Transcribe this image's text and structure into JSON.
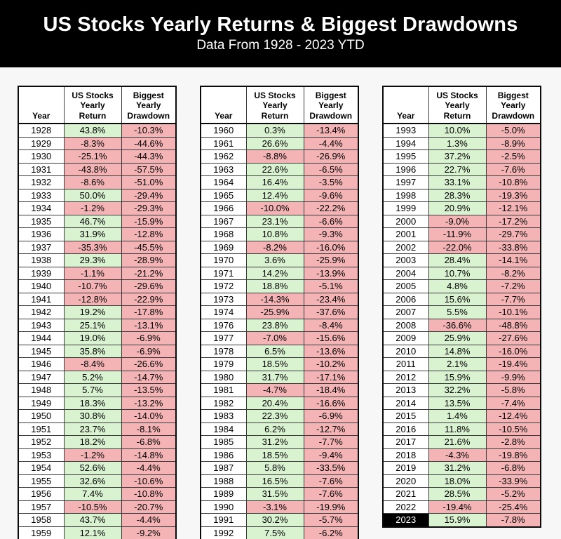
{
  "header": {
    "title": "US Stocks Yearly Returns & Biggest Drawdowns",
    "subtitle": "Data From 1928 - 2023 YTD"
  },
  "table_headers": {
    "year": "Year",
    "return": "US Stocks\nYearly\nReturn",
    "drawdown": "Biggest\nYearly\nDrawdown"
  },
  "colors": {
    "banner_bg": "#000000",
    "banner_text": "#ffffff",
    "positive_bg": "#d9f2d0",
    "negative_bg": "#f4b3b4",
    "highlight_year_bg": "#000000",
    "highlight_year_text": "#ffffff"
  },
  "chart_data": {
    "type": "table",
    "title": "US Stocks Yearly Returns & Biggest Drawdowns",
    "subtitle": "Data From 1928 - 2023 YTD",
    "columns": [
      "Year",
      "US Stocks Yearly Return",
      "Biggest Yearly Drawdown"
    ],
    "highlighted_year": "2023",
    "tables": [
      {
        "rows": [
          [
            "1928",
            "43.8%",
            "-10.3%"
          ],
          [
            "1929",
            "-8.3%",
            "-44.6%"
          ],
          [
            "1930",
            "-25.1%",
            "-44.3%"
          ],
          [
            "1931",
            "-43.8%",
            "-57.5%"
          ],
          [
            "1932",
            "-8.6%",
            "-51.0%"
          ],
          [
            "1933",
            "50.0%",
            "-29.4%"
          ],
          [
            "1934",
            "-1.2%",
            "-29.3%"
          ],
          [
            "1935",
            "46.7%",
            "-15.9%"
          ],
          [
            "1936",
            "31.9%",
            "-12.8%"
          ],
          [
            "1937",
            "-35.3%",
            "-45.5%"
          ],
          [
            "1938",
            "29.3%",
            "-28.9%"
          ],
          [
            "1939",
            "-1.1%",
            "-21.2%"
          ],
          [
            "1940",
            "-10.7%",
            "-29.6%"
          ],
          [
            "1941",
            "-12.8%",
            "-22.9%"
          ],
          [
            "1942",
            "19.2%",
            "-17.8%"
          ],
          [
            "1943",
            "25.1%",
            "-13.1%"
          ],
          [
            "1944",
            "19.0%",
            "-6.9%"
          ],
          [
            "1945",
            "35.8%",
            "-6.9%"
          ],
          [
            "1946",
            "-8.4%",
            "-26.6%"
          ],
          [
            "1947",
            "5.2%",
            "-14.7%"
          ],
          [
            "1948",
            "5.7%",
            "-13.5%"
          ],
          [
            "1949",
            "18.3%",
            "-13.2%"
          ],
          [
            "1950",
            "30.8%",
            "-14.0%"
          ],
          [
            "1951",
            "23.7%",
            "-8.1%"
          ],
          [
            "1952",
            "18.2%",
            "-6.8%"
          ],
          [
            "1953",
            "-1.2%",
            "-14.8%"
          ],
          [
            "1954",
            "52.6%",
            "-4.4%"
          ],
          [
            "1955",
            "32.6%",
            "-10.6%"
          ],
          [
            "1956",
            "7.4%",
            "-10.8%"
          ],
          [
            "1957",
            "-10.5%",
            "-20.7%"
          ],
          [
            "1958",
            "43.7%",
            "-4.4%"
          ],
          [
            "1959",
            "12.1%",
            "-9.2%"
          ]
        ]
      },
      {
        "rows": [
          [
            "1960",
            "0.3%",
            "-13.4%"
          ],
          [
            "1961",
            "26.6%",
            "-4.4%"
          ],
          [
            "1962",
            "-8.8%",
            "-26.9%"
          ],
          [
            "1963",
            "22.6%",
            "-6.5%"
          ],
          [
            "1964",
            "16.4%",
            "-3.5%"
          ],
          [
            "1965",
            "12.4%",
            "-9.6%"
          ],
          [
            "1966",
            "-10.0%",
            "-22.2%"
          ],
          [
            "1967",
            "23.1%",
            "-6.6%"
          ],
          [
            "1968",
            "10.8%",
            "-9.3%"
          ],
          [
            "1969",
            "-8.2%",
            "-16.0%"
          ],
          [
            "1970",
            "3.6%",
            "-25.9%"
          ],
          [
            "1971",
            "14.2%",
            "-13.9%"
          ],
          [
            "1972",
            "18.8%",
            "-5.1%"
          ],
          [
            "1973",
            "-14.3%",
            "-23.4%"
          ],
          [
            "1974",
            "-25.9%",
            "-37.6%"
          ],
          [
            "1976",
            "23.8%",
            "-8.4%"
          ],
          [
            "1977",
            "-7.0%",
            "-15.6%"
          ],
          [
            "1978",
            "6.5%",
            "-13.6%"
          ],
          [
            "1979",
            "18.5%",
            "-10.2%"
          ],
          [
            "1980",
            "31.7%",
            "-17.1%"
          ],
          [
            "1981",
            "-4.7%",
            "-18.4%"
          ],
          [
            "1982",
            "20.4%",
            "-16.6%"
          ],
          [
            "1983",
            "22.3%",
            "-6.9%"
          ],
          [
            "1984",
            "6.2%",
            "-12.7%"
          ],
          [
            "1985",
            "31.2%",
            "-7.7%"
          ],
          [
            "1986",
            "18.5%",
            "-9.4%"
          ],
          [
            "1987",
            "5.8%",
            "-33.5%"
          ],
          [
            "1988",
            "16.5%",
            "-7.6%"
          ],
          [
            "1989",
            "31.5%",
            "-7.6%"
          ],
          [
            "1990",
            "-3.1%",
            "-19.9%"
          ],
          [
            "1991",
            "30.2%",
            "-5.7%"
          ],
          [
            "1992",
            "7.5%",
            "-6.2%"
          ]
        ]
      },
      {
        "rows": [
          [
            "1993",
            "10.0%",
            "-5.0%"
          ],
          [
            "1994",
            "1.3%",
            "-8.9%"
          ],
          [
            "1995",
            "37.2%",
            "-2.5%"
          ],
          [
            "1996",
            "22.7%",
            "-7.6%"
          ],
          [
            "1997",
            "33.1%",
            "-10.8%"
          ],
          [
            "1998",
            "28.3%",
            "-19.3%"
          ],
          [
            "1999",
            "20.9%",
            "-12.1%"
          ],
          [
            "2000",
            "-9.0%",
            "-17.2%"
          ],
          [
            "2001",
            "-11.9%",
            "-29.7%"
          ],
          [
            "2002",
            "-22.0%",
            "-33.8%"
          ],
          [
            "2003",
            "28.4%",
            "-14.1%"
          ],
          [
            "2004",
            "10.7%",
            "-8.2%"
          ],
          [
            "2005",
            "4.8%",
            "-7.2%"
          ],
          [
            "2006",
            "15.6%",
            "-7.7%"
          ],
          [
            "2007",
            "5.5%",
            "-10.1%"
          ],
          [
            "2008",
            "-36.6%",
            "-48.8%"
          ],
          [
            "2009",
            "25.9%",
            "-27.6%"
          ],
          [
            "2010",
            "14.8%",
            "-16.0%"
          ],
          [
            "2011",
            "2.1%",
            "-19.4%"
          ],
          [
            "2012",
            "15.9%",
            "-9.9%"
          ],
          [
            "2013",
            "32.2%",
            "-5.8%"
          ],
          [
            "2014",
            "13.5%",
            "-7.4%"
          ],
          [
            "2015",
            "1.4%",
            "-12.4%"
          ],
          [
            "2016",
            "11.8%",
            "-10.5%"
          ],
          [
            "2017",
            "21.6%",
            "-2.8%"
          ],
          [
            "2018",
            "-4.3%",
            "-19.8%"
          ],
          [
            "2019",
            "31.2%",
            "-6.8%"
          ],
          [
            "2020",
            "18.0%",
            "-33.9%"
          ],
          [
            "2021",
            "28.5%",
            "-5.2%"
          ],
          [
            "2022",
            "-19.4%",
            "-25.4%"
          ],
          [
            "2023",
            "15.9%",
            "-7.8%"
          ]
        ]
      }
    ]
  }
}
